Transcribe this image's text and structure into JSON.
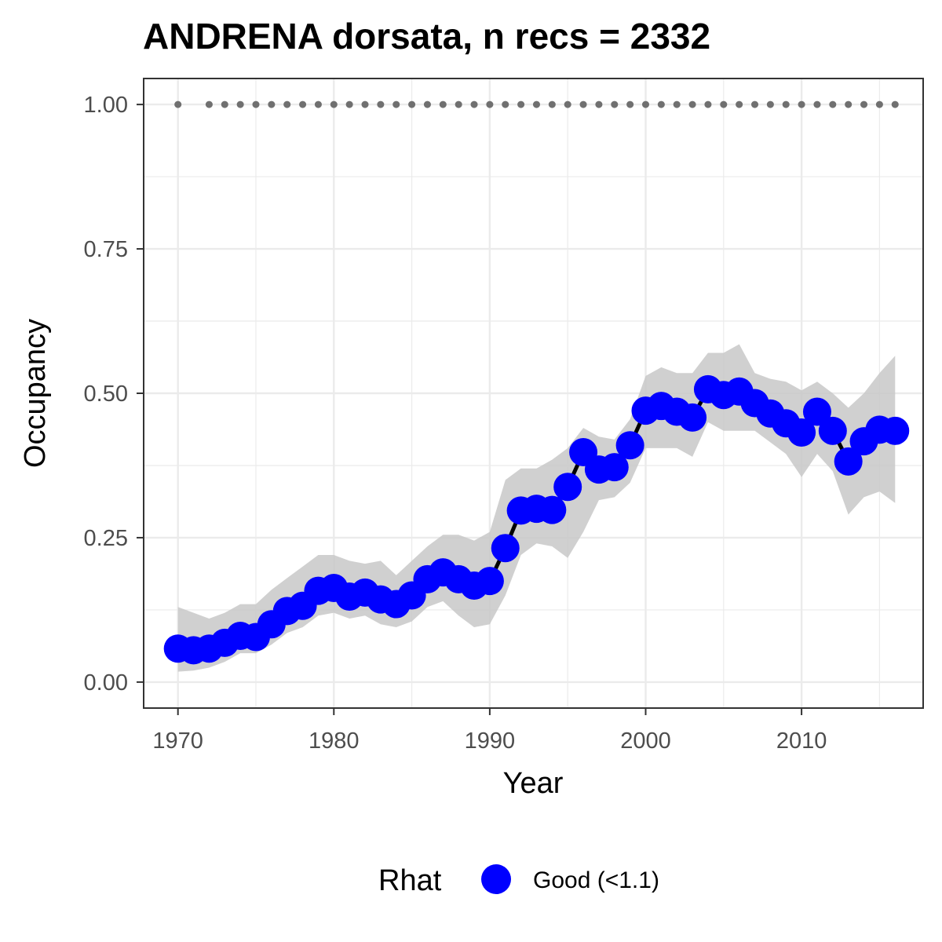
{
  "chart_data": {
    "type": "line",
    "title": "ANDRENA dorsata, n recs = 2332",
    "xlabel": "Year",
    "ylabel": "Occupancy",
    "xlim": [
      1967.8,
      2017.8
    ],
    "ylim": [
      -0.045,
      1.045
    ],
    "x_ticks": [
      1970,
      1980,
      1990,
      2000,
      2010
    ],
    "x_tick_labels": [
      "1970",
      "1980",
      "1990",
      "2000",
      "2010"
    ],
    "y_ticks": [
      0,
      0.25,
      0.5,
      0.75,
      1.0
    ],
    "y_tick_labels": [
      "0.00",
      "0.25",
      "0.50",
      "0.75",
      "1.00"
    ],
    "grid": true,
    "legend": {
      "position": "bottom",
      "title": "Rhat",
      "entries": [
        {
          "label": "Good (<1.1)",
          "color": "#0000ff"
        }
      ]
    },
    "colors": {
      "points": "#0000ff",
      "line": "#000000",
      "ribbon": "#c8c8c8",
      "record_dots": "#707070",
      "grid": "#ebebeb",
      "panel_border": "#333333"
    },
    "series": [
      {
        "x": [
          1970,
          1971,
          1972,
          1973,
          1974,
          1975,
          1976,
          1977,
          1978,
          1979,
          1980,
          1981,
          1982,
          1983,
          1984,
          1985,
          1986,
          1987,
          1988,
          1989,
          1990,
          1991,
          1992,
          1993,
          1994,
          1995,
          1996,
          1997,
          1998,
          1999,
          2000,
          2001,
          2002,
          2003,
          2004,
          2005,
          2006,
          2007,
          2008,
          2009,
          2010,
          2011,
          2012,
          2013,
          2014,
          2015,
          2016
        ],
        "y": [
          0.058,
          0.055,
          0.058,
          0.068,
          0.08,
          0.078,
          0.1,
          0.123,
          0.132,
          0.158,
          0.163,
          0.148,
          0.155,
          0.143,
          0.135,
          0.15,
          0.178,
          0.19,
          0.178,
          0.167,
          0.175,
          0.232,
          0.297,
          0.3,
          0.298,
          0.338,
          0.398,
          0.368,
          0.372,
          0.41,
          0.47,
          0.478,
          0.468,
          0.458,
          0.507,
          0.497,
          0.503,
          0.483,
          0.465,
          0.448,
          0.432,
          0.468,
          0.435,
          0.382,
          0.417,
          0.437,
          0.435
        ],
        "lower": [
          0.018,
          0.02,
          0.025,
          0.035,
          0.05,
          0.05,
          0.065,
          0.085,
          0.095,
          0.115,
          0.12,
          0.11,
          0.115,
          0.1,
          0.095,
          0.105,
          0.13,
          0.14,
          0.115,
          0.095,
          0.1,
          0.15,
          0.22,
          0.24,
          0.235,
          0.215,
          0.26,
          0.315,
          0.32,
          0.345,
          0.405,
          0.405,
          0.405,
          0.39,
          0.45,
          0.435,
          0.435,
          0.435,
          0.415,
          0.395,
          0.355,
          0.395,
          0.365,
          0.29,
          0.32,
          0.33,
          0.31
        ],
        "upper": [
          0.13,
          0.12,
          0.11,
          0.12,
          0.135,
          0.135,
          0.16,
          0.18,
          0.2,
          0.22,
          0.22,
          0.21,
          0.205,
          0.21,
          0.185,
          0.21,
          0.235,
          0.255,
          0.255,
          0.245,
          0.26,
          0.35,
          0.37,
          0.37,
          0.385,
          0.405,
          0.44,
          0.425,
          0.42,
          0.455,
          0.53,
          0.545,
          0.535,
          0.535,
          0.57,
          0.57,
          0.585,
          0.535,
          0.525,
          0.52,
          0.505,
          0.52,
          0.5,
          0.475,
          0.5,
          0.535,
          0.565
        ]
      }
    ],
    "record_dot_years": [
      1970,
      1972,
      1973,
      1974,
      1975,
      1976,
      1977,
      1978,
      1979,
      1980,
      1981,
      1982,
      1983,
      1984,
      1985,
      1986,
      1987,
      1988,
      1989,
      1990,
      1991,
      1992,
      1993,
      1994,
      1995,
      1996,
      1997,
      1998,
      1999,
      2000,
      2001,
      2002,
      2003,
      2004,
      2005,
      2006,
      2007,
      2008,
      2009,
      2010,
      2011,
      2012,
      2013,
      2014,
      2015,
      2016
    ],
    "record_dot_y": 1.0
  }
}
